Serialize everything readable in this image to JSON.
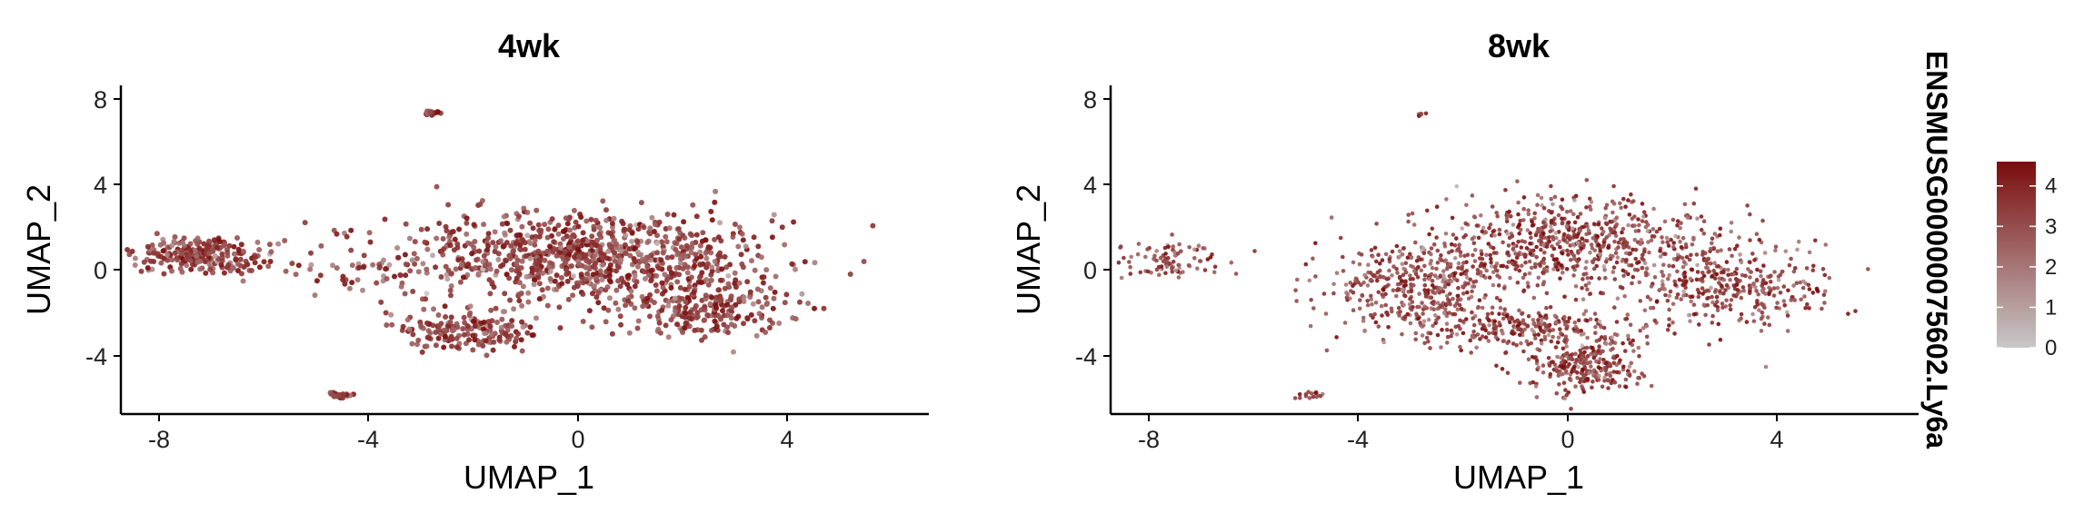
{
  "chart_data": [
    {
      "type": "scatter",
      "title": "4wk",
      "xlabel": "UMAP_1",
      "ylabel": "UMAP_2",
      "xlim": [
        -8.6,
        6.8
      ],
      "ylim": [
        -6.7,
        9.0
      ],
      "xticks": [
        "-8",
        "-4",
        "0",
        "4"
      ],
      "yticks": [
        "-4",
        "0",
        "4",
        "8"
      ],
      "clusters": [
        {
          "cx": 0.2,
          "cy": 0.8,
          "sx": 2.3,
          "sy": 1.4,
          "n": 900
        },
        {
          "cx": 2.5,
          "cy": -1.6,
          "sx": 1.0,
          "sy": 0.9,
          "n": 230
        },
        {
          "cx": -2.0,
          "cy": -2.7,
          "sx": 0.9,
          "sy": 0.5,
          "n": 170
        },
        {
          "cx": -7.0,
          "cy": 0.9,
          "sx": 0.8,
          "sy": 0.6,
          "n": 230
        },
        {
          "cx": -4.5,
          "cy": 0.2,
          "sx": 0.8,
          "sy": 0.6,
          "n": 30
        },
        {
          "cx": -4.5,
          "cy": -5.8,
          "sx": 0.15,
          "sy": 0.1,
          "n": 30
        },
        {
          "cx": -2.7,
          "cy": 7.7,
          "sx": 0.12,
          "sy": 0.07,
          "n": 20
        }
      ]
    },
    {
      "type": "scatter",
      "title": "8wk",
      "xlabel": "UMAP_1",
      "ylabel": "UMAP_2",
      "xlim": [
        -8.6,
        6.8
      ],
      "ylim": [
        -6.7,
        9.0
      ],
      "xticks": [
        "-8",
        "-4",
        "0",
        "4"
      ],
      "yticks": [
        "-4",
        "0",
        "4",
        "8"
      ],
      "clusters": [
        {
          "cx": 0.0,
          "cy": 1.5,
          "sx": 1.6,
          "sy": 1.4,
          "n": 650
        },
        {
          "cx": 3.0,
          "cy": -0.4,
          "sx": 1.2,
          "sy": 1.4,
          "n": 380
        },
        {
          "cx": -2.7,
          "cy": -0.6,
          "sx": 1.0,
          "sy": 1.2,
          "n": 380
        },
        {
          "cx": 0.5,
          "cy": -4.4,
          "sx": 0.7,
          "sy": 0.8,
          "n": 260
        },
        {
          "cx": -0.8,
          "cy": -2.6,
          "sx": 1.3,
          "sy": 0.6,
          "n": 260
        },
        {
          "cx": -7.5,
          "cy": 0.6,
          "sx": 0.7,
          "sy": 0.6,
          "n": 90
        },
        {
          "cx": -4.8,
          "cy": -5.8,
          "sx": 0.2,
          "sy": 0.12,
          "n": 15
        },
        {
          "cx": -2.7,
          "cy": 7.6,
          "sx": 0.08,
          "sy": 0.06,
          "n": 6
        }
      ]
    }
  ],
  "colorbar": {
    "gene_label": "ENSMUSG00000075602.Ly6a",
    "min": 0,
    "max": 4.6,
    "ticks": [
      "0",
      "1",
      "2",
      "3",
      "4"
    ],
    "low_color": "#c8c8c8",
    "high_color": "#7b0c0c"
  }
}
